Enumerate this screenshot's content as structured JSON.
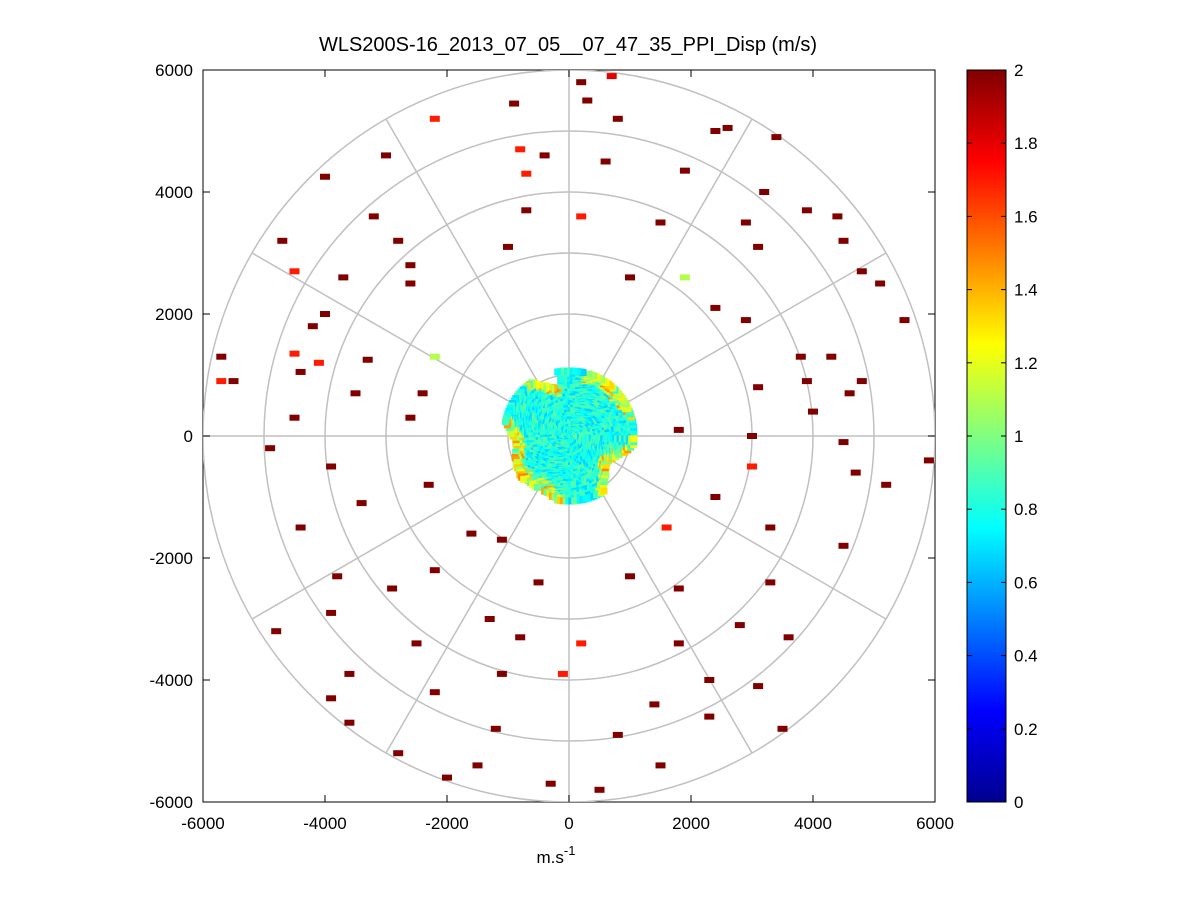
{
  "chart_data": {
    "type": "scatter",
    "subtype": "polar-ppi-colormap",
    "title": "WLS200S-16_2013_07_05__07_47_35_PPI_Disp (m/s)",
    "xlabel": "m.s-1",
    "xlabel_base": "m.s",
    "xlabel_sup": "-1",
    "ylabel": "",
    "xlim": [
      -6000,
      6000
    ],
    "ylim": [
      -6000,
      6000
    ],
    "x_ticks": [
      -6000,
      -4000,
      -2000,
      0,
      2000,
      4000,
      6000
    ],
    "y_ticks": [
      6000,
      4000,
      2000,
      0,
      -2000,
      -4000,
      -6000
    ],
    "x_tick_labels": [
      "-6000",
      "-4000",
      "-2000",
      "0",
      "2000",
      "4000",
      "6000"
    ],
    "y_tick_labels": [
      "6000",
      "4000",
      "2000",
      "0",
      "-2000",
      "-4000",
      "-6000"
    ],
    "polar_grid": {
      "range_rings": [
        1000,
        2000,
        3000,
        4000,
        5000,
        6000
      ],
      "spoke_angles_deg": [
        0,
        30,
        60,
        90,
        120,
        150,
        180,
        210,
        240,
        270,
        300,
        330
      ]
    },
    "colorbar": {
      "range": [
        0,
        2
      ],
      "ticks": [
        0,
        0.2,
        0.4,
        0.6,
        0.8,
        1,
        1.2,
        1.4,
        1.6,
        1.8,
        2
      ],
      "tick_labels": [
        "0",
        "0.2",
        "0.4",
        "0.6",
        "0.8",
        "1",
        "1.2",
        "1.4",
        "1.6",
        "1.8",
        "2"
      ],
      "colormap": "jet"
    },
    "inner_region": {
      "description_values": "dense returns within ~1100 m range, values mostly 0.6-1.0 m/s",
      "value_range": [
        0.6,
        1.3
      ]
    },
    "scattered_points": [
      {
        "x": 200,
        "y": 5800,
        "v": 2
      },
      {
        "x": 700,
        "y": 5900,
        "v": 1.8
      },
      {
        "x": -900,
        "y": 5450,
        "v": 2
      },
      {
        "x": -2200,
        "y": 5200,
        "v": 1.7
      },
      {
        "x": 300,
        "y": 5500,
        "v": 2
      },
      {
        "x": 800,
        "y": 5200,
        "v": 2
      },
      {
        "x": 2400,
        "y": 5000,
        "v": 2
      },
      {
        "x": 2600,
        "y": 5050,
        "v": 2
      },
      {
        "x": 3400,
        "y": 4900,
        "v": 2
      },
      {
        "x": -3000,
        "y": 4600,
        "v": 2
      },
      {
        "x": -800,
        "y": 4700,
        "v": 1.7
      },
      {
        "x": -400,
        "y": 4600,
        "v": 2
      },
      {
        "x": 600,
        "y": 4500,
        "v": 2
      },
      {
        "x": 1900,
        "y": 4350,
        "v": 2
      },
      {
        "x": -4000,
        "y": 4250,
        "v": 2
      },
      {
        "x": -700,
        "y": 4300,
        "v": 1.7
      },
      {
        "x": 3200,
        "y": 4000,
        "v": 2
      },
      {
        "x": 3900,
        "y": 3700,
        "v": 2
      },
      {
        "x": 4400,
        "y": 3600,
        "v": 2
      },
      {
        "x": -3200,
        "y": 3600,
        "v": 2
      },
      {
        "x": -700,
        "y": 3700,
        "v": 2
      },
      {
        "x": 200,
        "y": 3600,
        "v": 1.7
      },
      {
        "x": 1500,
        "y": 3500,
        "v": 2
      },
      {
        "x": 2900,
        "y": 3500,
        "v": 2
      },
      {
        "x": -4700,
        "y": 3200,
        "v": 2
      },
      {
        "x": -2800,
        "y": 3200,
        "v": 2
      },
      {
        "x": 4500,
        "y": 3200,
        "v": 2
      },
      {
        "x": 3100,
        "y": 3100,
        "v": 2
      },
      {
        "x": -1000,
        "y": 3100,
        "v": 2
      },
      {
        "x": -4500,
        "y": 2700,
        "v": 1.7
      },
      {
        "x": -3700,
        "y": 2600,
        "v": 2
      },
      {
        "x": -2600,
        "y": 2800,
        "v": 2
      },
      {
        "x": 1000,
        "y": 2600,
        "v": 2
      },
      {
        "x": 1900,
        "y": 2600,
        "v": 1.1
      },
      {
        "x": 4800,
        "y": 2700,
        "v": 2
      },
      {
        "x": 5100,
        "y": 2500,
        "v": 2
      },
      {
        "x": -2600,
        "y": 2500,
        "v": 2
      },
      {
        "x": -4000,
        "y": 2000,
        "v": 2
      },
      {
        "x": 2400,
        "y": 2100,
        "v": 2
      },
      {
        "x": 2900,
        "y": 1900,
        "v": 2
      },
      {
        "x": 5500,
        "y": 1900,
        "v": 2
      },
      {
        "x": -4200,
        "y": 1800,
        "v": 2
      },
      {
        "x": -2200,
        "y": 1300,
        "v": 1.1
      },
      {
        "x": -5700,
        "y": 1300,
        "v": 2
      },
      {
        "x": -4500,
        "y": 1350,
        "v": 1.7
      },
      {
        "x": -4100,
        "y": 1200,
        "v": 1.7
      },
      {
        "x": -3300,
        "y": 1250,
        "v": 2
      },
      {
        "x": 3800,
        "y": 1300,
        "v": 2
      },
      {
        "x": 4300,
        "y": 1300,
        "v": 2
      },
      {
        "x": -5700,
        "y": 900,
        "v": 1.7
      },
      {
        "x": -5500,
        "y": 900,
        "v": 2
      },
      {
        "x": -4400,
        "y": 1050,
        "v": 2
      },
      {
        "x": 4800,
        "y": 900,
        "v": 2
      },
      {
        "x": 3100,
        "y": 800,
        "v": 2
      },
      {
        "x": 3900,
        "y": 900,
        "v": 2
      },
      {
        "x": 4600,
        "y": 700,
        "v": 2
      },
      {
        "x": -3500,
        "y": 700,
        "v": 2
      },
      {
        "x": -2400,
        "y": 700,
        "v": 2
      },
      {
        "x": 4000,
        "y": 400,
        "v": 2
      },
      {
        "x": -4500,
        "y": 300,
        "v": 2
      },
      {
        "x": -2600,
        "y": 300,
        "v": 2
      },
      {
        "x": 1800,
        "y": 100,
        "v": 2
      },
      {
        "x": 3000,
        "y": 0,
        "v": 2
      },
      {
        "x": -4900,
        "y": -200,
        "v": 2
      },
      {
        "x": 4500,
        "y": -100,
        "v": 2
      },
      {
        "x": 5900,
        "y": -400,
        "v": 2
      },
      {
        "x": -3900,
        "y": -500,
        "v": 2
      },
      {
        "x": 3000,
        "y": -500,
        "v": 1.7
      },
      {
        "x": 4700,
        "y": -600,
        "v": 2
      },
      {
        "x": -2300,
        "y": -800,
        "v": 2
      },
      {
        "x": 5200,
        "y": -800,
        "v": 2
      },
      {
        "x": -3400,
        "y": -1100,
        "v": 2
      },
      {
        "x": 2400,
        "y": -1000,
        "v": 2
      },
      {
        "x": -4400,
        "y": -1500,
        "v": 2
      },
      {
        "x": 3300,
        "y": -1500,
        "v": 2
      },
      {
        "x": -1600,
        "y": -1600,
        "v": 2
      },
      {
        "x": -1100,
        "y": -1700,
        "v": 2
      },
      {
        "x": 1600,
        "y": -1500,
        "v": 1.7
      },
      {
        "x": 4500,
        "y": -1800,
        "v": 2
      },
      {
        "x": -3800,
        "y": -2300,
        "v": 2
      },
      {
        "x": -2200,
        "y": -2200,
        "v": 2
      },
      {
        "x": 1000,
        "y": -2300,
        "v": 2
      },
      {
        "x": 3300,
        "y": -2400,
        "v": 2
      },
      {
        "x": -2900,
        "y": -2500,
        "v": 2
      },
      {
        "x": -500,
        "y": -2400,
        "v": 2
      },
      {
        "x": 1800,
        "y": -2500,
        "v": 2
      },
      {
        "x": -4800,
        "y": -3200,
        "v": 2
      },
      {
        "x": -3900,
        "y": -2900,
        "v": 2
      },
      {
        "x": -1300,
        "y": -3000,
        "v": 2
      },
      {
        "x": 2800,
        "y": -3100,
        "v": 2
      },
      {
        "x": 3600,
        "y": -3300,
        "v": 2
      },
      {
        "x": -2500,
        "y": -3400,
        "v": 2
      },
      {
        "x": -800,
        "y": -3300,
        "v": 2
      },
      {
        "x": 200,
        "y": -3400,
        "v": 1.7
      },
      {
        "x": 1800,
        "y": -3400,
        "v": 2
      },
      {
        "x": -3600,
        "y": -3900,
        "v": 2
      },
      {
        "x": -1100,
        "y": -3900,
        "v": 2
      },
      {
        "x": -100,
        "y": -3900,
        "v": 1.7
      },
      {
        "x": 2300,
        "y": -4000,
        "v": 2
      },
      {
        "x": 3100,
        "y": -4100,
        "v": 2
      },
      {
        "x": -3900,
        "y": -4300,
        "v": 2
      },
      {
        "x": -2200,
        "y": -4200,
        "v": 2
      },
      {
        "x": 1400,
        "y": -4400,
        "v": 2
      },
      {
        "x": 2300,
        "y": -4600,
        "v": 2
      },
      {
        "x": 3500,
        "y": -4800,
        "v": 2
      },
      {
        "x": -3600,
        "y": -4700,
        "v": 2
      },
      {
        "x": -1200,
        "y": -4800,
        "v": 2
      },
      {
        "x": 800,
        "y": -4900,
        "v": 2
      },
      {
        "x": -2800,
        "y": -5200,
        "v": 2
      },
      {
        "x": -1500,
        "y": -5400,
        "v": 2
      },
      {
        "x": 1500,
        "y": -5400,
        "v": 2
      },
      {
        "x": -2000,
        "y": -5600,
        "v": 2
      },
      {
        "x": -300,
        "y": -5700,
        "v": 2
      },
      {
        "x": 500,
        "y": -5800,
        "v": 2
      }
    ]
  }
}
